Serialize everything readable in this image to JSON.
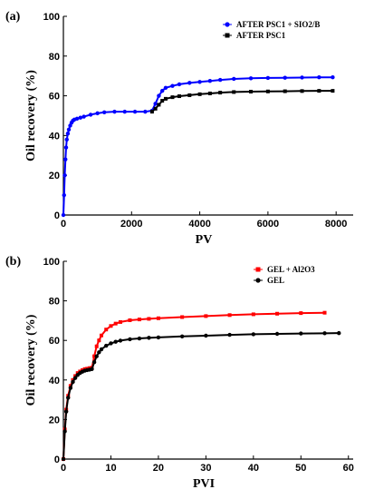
{
  "chart_data": [
    {
      "panel_label": "(a)",
      "type": "scatter",
      "xlabel": "PV",
      "ylabel": "Oil recovery (%)",
      "xlim": [
        0,
        8500
      ],
      "ylim": [
        0,
        100
      ],
      "xticks": [
        0,
        2000,
        4000,
        6000,
        8000
      ],
      "yticks": [
        0,
        20,
        40,
        60,
        80,
        100
      ],
      "legend_position": "top-right",
      "series": [
        {
          "name": "AFTER PSC1 + SIO2/B",
          "color": "#0000ff",
          "marker": "circle",
          "x": [
            0,
            20,
            40,
            60,
            80,
            100,
            130,
            160,
            200,
            240,
            280,
            320,
            400,
            500,
            600,
            800,
            1000,
            1200,
            1500,
            1800,
            2100,
            2400,
            2600,
            2700,
            2800,
            2900,
            3000,
            3200,
            3400,
            3700,
            4000,
            4300,
            4600,
            5000,
            5500,
            6000,
            6500,
            7000,
            7500,
            7900
          ],
          "values": [
            0,
            10,
            20,
            28,
            34,
            38,
            41,
            43,
            45,
            46.5,
            47.5,
            48,
            48.5,
            49,
            49.5,
            50.5,
            51.2,
            51.7,
            52,
            52,
            52,
            52,
            52.5,
            56,
            60,
            62.5,
            64,
            65,
            65.8,
            66.5,
            67,
            67.5,
            68,
            68.5,
            68.8,
            69,
            69.1,
            69.2,
            69.3,
            69.3
          ]
        },
        {
          "name": "AFTER PSC1",
          "color": "#000000",
          "marker": "square",
          "x": [
            2600,
            2700,
            2800,
            2900,
            3000,
            3200,
            3400,
            3700,
            4000,
            4300,
            4600,
            5000,
            5500,
            6000,
            6500,
            7000,
            7500,
            7900
          ],
          "values": [
            52,
            53.5,
            55.5,
            57.5,
            58.5,
            59.3,
            59.8,
            60.3,
            60.8,
            61.2,
            61.6,
            61.9,
            62.1,
            62.2,
            62.3,
            62.4,
            62.5,
            62.5
          ]
        }
      ]
    },
    {
      "panel_label": "(b)",
      "type": "scatter",
      "xlabel": "PVI",
      "ylabel": "Oil recovery (%)",
      "xlim": [
        0,
        61
      ],
      "ylim": [
        0,
        100
      ],
      "xticks": [
        0,
        10,
        20,
        30,
        40,
        50,
        60
      ],
      "yticks": [
        0,
        20,
        40,
        60,
        80,
        100
      ],
      "legend_position": "top-right",
      "series": [
        {
          "name": "GEL + Al2O3",
          "color": "#ff0000",
          "marker": "square",
          "x": [
            0,
            0.3,
            0.6,
            1,
            1.5,
            2,
            2.5,
            3,
            3.5,
            4,
            4.5,
            5,
            5.5,
            6,
            6.5,
            7,
            7.5,
            8,
            9,
            10,
            11,
            12,
            14,
            16,
            18,
            20,
            25,
            30,
            35,
            40,
            45,
            50,
            55
          ],
          "values": [
            0,
            15,
            25,
            32,
            37,
            40,
            42,
            43.5,
            44.3,
            45,
            45.5,
            45.7,
            46,
            46.2,
            52,
            57,
            60,
            62.5,
            65.5,
            67.3,
            68.5,
            69.3,
            70.2,
            70.6,
            70.9,
            71.2,
            71.8,
            72.3,
            72.8,
            73.2,
            73.5,
            73.8,
            74
          ]
        },
        {
          "name": "GEL",
          "color": "#000000",
          "marker": "circle",
          "x": [
            0,
            0.3,
            0.6,
            1,
            1.5,
            2,
            2.5,
            3,
            3.5,
            4,
            4.5,
            5,
            5.5,
            6,
            6.5,
            7,
            7.5,
            8,
            9,
            10,
            11,
            12,
            14,
            16,
            18,
            20,
            25,
            30,
            35,
            40,
            45,
            50,
            55,
            58
          ],
          "values": [
            0,
            14,
            24,
            31,
            36,
            39,
            41,
            42.5,
            43.5,
            44.2,
            44.7,
            45,
            45.2,
            45.5,
            49,
            52,
            54,
            55.5,
            57.3,
            58.5,
            59.3,
            59.9,
            60.6,
            61,
            61.3,
            61.5,
            62,
            62.4,
            62.8,
            63.1,
            63.3,
            63.5,
            63.6,
            63.7
          ]
        }
      ]
    }
  ]
}
